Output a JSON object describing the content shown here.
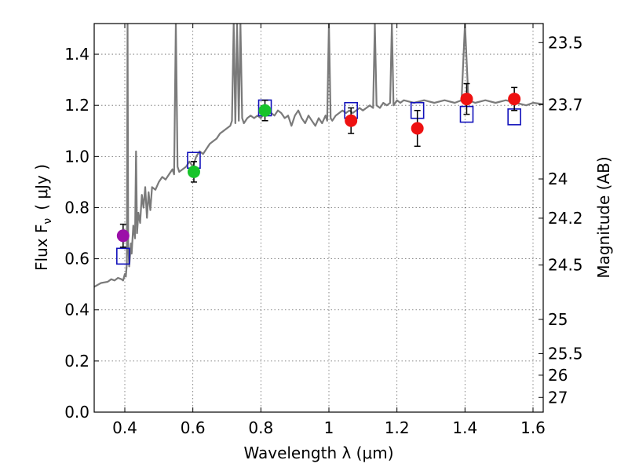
{
  "chart_data": {
    "type": "scatter",
    "xlabel": "Wavelength  λ (μm)",
    "ylabel_left": "Flux  F",
    "ylabel_left_sub": "ν",
    "ylabel_left_unit": "( μJy )",
    "ylabel_right": "Magnitude (AB)",
    "xlim": [
      0.31,
      1.63
    ],
    "ylim": [
      0.0,
      1.52
    ],
    "grid": true,
    "x_ticks": [
      {
        "value": 0.4,
        "label": "0.4"
      },
      {
        "value": 0.6,
        "label": "0.6"
      },
      {
        "value": 0.8,
        "label": "0.8"
      },
      {
        "value": 1.0,
        "label": "1"
      },
      {
        "value": 1.2,
        "label": "1.2"
      },
      {
        "value": 1.4,
        "label": "1.4"
      },
      {
        "value": 1.6,
        "label": "1.6"
      }
    ],
    "y_ticks": [
      {
        "value": 0.0,
        "label": "0.0"
      },
      {
        "value": 0.2,
        "label": "0.2"
      },
      {
        "value": 0.4,
        "label": "0.4"
      },
      {
        "value": 0.6,
        "label": "0.6"
      },
      {
        "value": 0.8,
        "label": "0.8"
      },
      {
        "value": 1.0,
        "label": "1.0"
      },
      {
        "value": 1.2,
        "label": "1.2"
      },
      {
        "value": 1.4,
        "label": "1.4"
      }
    ],
    "mag_ticks": [
      {
        "label": "23.5",
        "flux": 1.4454
      },
      {
        "label": "23.7",
        "flux": 1.2023
      },
      {
        "label": "24",
        "flux": 0.912
      },
      {
        "label": "24.2",
        "flux": 0.7586
      },
      {
        "label": "24.5",
        "flux": 0.5754
      },
      {
        "label": "25",
        "flux": 0.3631
      },
      {
        "label": "25.5",
        "flux": 0.2291
      },
      {
        "label": "26",
        "flux": 0.1445
      },
      {
        "label": "27",
        "flux": 0.0575
      }
    ],
    "observed_points": [
      {
        "x": 0.395,
        "y": 0.69,
        "err": 0.045,
        "color": "#9b0fa8"
      },
      {
        "x": 0.603,
        "y": 0.94,
        "err": 0.04,
        "color": "#17c42a"
      },
      {
        "x": 0.812,
        "y": 1.18,
        "err": 0.04,
        "color": "#17c42a"
      },
      {
        "x": 1.065,
        "y": 1.14,
        "err": 0.05,
        "color": "#ee1111"
      },
      {
        "x": 1.26,
        "y": 1.11,
        "err": 0.07,
        "color": "#ee1111"
      },
      {
        "x": 1.405,
        "y": 1.225,
        "err": 0.06,
        "color": "#ee1111"
      },
      {
        "x": 1.545,
        "y": 1.225,
        "err": 0.045,
        "color": "#ee1111"
      }
    ],
    "model_points": [
      {
        "x": 0.395,
        "y": 0.61
      },
      {
        "x": 0.603,
        "y": 0.985
      },
      {
        "x": 0.812,
        "y": 1.19
      },
      {
        "x": 1.065,
        "y": 1.18
      },
      {
        "x": 1.26,
        "y": 1.18
      },
      {
        "x": 1.405,
        "y": 1.165
      },
      {
        "x": 1.545,
        "y": 1.155
      }
    ],
    "spectrum": [
      [
        0.31,
        0.49
      ],
      [
        0.33,
        0.505
      ],
      [
        0.35,
        0.51
      ],
      [
        0.36,
        0.52
      ],
      [
        0.37,
        0.515
      ],
      [
        0.38,
        0.525
      ],
      [
        0.39,
        0.52
      ],
      [
        0.395,
        0.515
      ],
      [
        0.4,
        0.54
      ],
      [
        0.403,
        0.53
      ],
      [
        0.406,
        0.58
      ],
      [
        0.408,
        1.52
      ],
      [
        0.41,
        0.66
      ],
      [
        0.413,
        0.57
      ],
      [
        0.418,
        0.66
      ],
      [
        0.42,
        0.62
      ],
      [
        0.425,
        0.73
      ],
      [
        0.43,
        0.68
      ],
      [
        0.433,
        1.02
      ],
      [
        0.436,
        0.7
      ],
      [
        0.44,
        0.78
      ],
      [
        0.445,
        0.74
      ],
      [
        0.45,
        0.85
      ],
      [
        0.455,
        0.8
      ],
      [
        0.46,
        0.88
      ],
      [
        0.465,
        0.76
      ],
      [
        0.47,
        0.86
      ],
      [
        0.475,
        0.79
      ],
      [
        0.48,
        0.88
      ],
      [
        0.49,
        0.87
      ],
      [
        0.5,
        0.9
      ],
      [
        0.51,
        0.92
      ],
      [
        0.52,
        0.91
      ],
      [
        0.53,
        0.93
      ],
      [
        0.54,
        0.95
      ],
      [
        0.545,
        0.93
      ],
      [
        0.55,
        1.52
      ],
      [
        0.555,
        0.96
      ],
      [
        0.56,
        0.94
      ],
      [
        0.57,
        0.95
      ],
      [
        0.58,
        0.96
      ],
      [
        0.59,
        0.98
      ],
      [
        0.6,
        0.96
      ],
      [
        0.61,
        1.0
      ],
      [
        0.62,
        1.02
      ],
      [
        0.63,
        1.01
      ],
      [
        0.64,
        1.03
      ],
      [
        0.65,
        1.05
      ],
      [
        0.66,
        1.06
      ],
      [
        0.67,
        1.07
      ],
      [
        0.68,
        1.09
      ],
      [
        0.69,
        1.1
      ],
      [
        0.7,
        1.11
      ],
      [
        0.71,
        1.12
      ],
      [
        0.715,
        1.14
      ],
      [
        0.72,
        1.52
      ],
      [
        0.725,
        1.13
      ],
      [
        0.73,
        1.52
      ],
      [
        0.735,
        1.14
      ],
      [
        0.74,
        1.52
      ],
      [
        0.745,
        1.15
      ],
      [
        0.75,
        1.13
      ],
      [
        0.76,
        1.15
      ],
      [
        0.77,
        1.16
      ],
      [
        0.78,
        1.15
      ],
      [
        0.79,
        1.16
      ],
      [
        0.8,
        1.15
      ],
      [
        0.81,
        1.17
      ],
      [
        0.82,
        1.18
      ],
      [
        0.83,
        1.17
      ],
      [
        0.84,
        1.16
      ],
      [
        0.85,
        1.18
      ],
      [
        0.86,
        1.17
      ],
      [
        0.87,
        1.15
      ],
      [
        0.88,
        1.16
      ],
      [
        0.89,
        1.12
      ],
      [
        0.9,
        1.16
      ],
      [
        0.91,
        1.18
      ],
      [
        0.92,
        1.15
      ],
      [
        0.93,
        1.13
      ],
      [
        0.94,
        1.16
      ],
      [
        0.95,
        1.14
      ],
      [
        0.96,
        1.12
      ],
      [
        0.97,
        1.15
      ],
      [
        0.98,
        1.13
      ],
      [
        0.99,
        1.16
      ],
      [
        0.995,
        1.14
      ],
      [
        1.0,
        1.52
      ],
      [
        1.005,
        1.15
      ],
      [
        1.01,
        1.14
      ],
      [
        1.02,
        1.16
      ],
      [
        1.03,
        1.17
      ],
      [
        1.04,
        1.18
      ],
      [
        1.05,
        1.17
      ],
      [
        1.06,
        1.18
      ],
      [
        1.07,
        1.17
      ],
      [
        1.08,
        1.18
      ],
      [
        1.09,
        1.19
      ],
      [
        1.1,
        1.18
      ],
      [
        1.11,
        1.19
      ],
      [
        1.12,
        1.2
      ],
      [
        1.13,
        1.19
      ],
      [
        1.135,
        1.52
      ],
      [
        1.14,
        1.2
      ],
      [
        1.15,
        1.19
      ],
      [
        1.16,
        1.21
      ],
      [
        1.17,
        1.2
      ],
      [
        1.18,
        1.21
      ],
      [
        1.185,
        1.52
      ],
      [
        1.19,
        1.2
      ],
      [
        1.2,
        1.22
      ],
      [
        1.21,
        1.21
      ],
      [
        1.22,
        1.22
      ],
      [
        1.25,
        1.21
      ],
      [
        1.28,
        1.22
      ],
      [
        1.31,
        1.21
      ],
      [
        1.34,
        1.22
      ],
      [
        1.37,
        1.21
      ],
      [
        1.39,
        1.22
      ],
      [
        1.4,
        1.52
      ],
      [
        1.41,
        1.22
      ],
      [
        1.43,
        1.21
      ],
      [
        1.46,
        1.22
      ],
      [
        1.49,
        1.21
      ],
      [
        1.52,
        1.22
      ],
      [
        1.55,
        1.21
      ],
      [
        1.58,
        1.2
      ],
      [
        1.6,
        1.21
      ],
      [
        1.63,
        1.205
      ]
    ],
    "colors": {
      "spectrum": "#7a7a7a",
      "model_square": "#1111bb",
      "error_bar": "#000000"
    }
  }
}
